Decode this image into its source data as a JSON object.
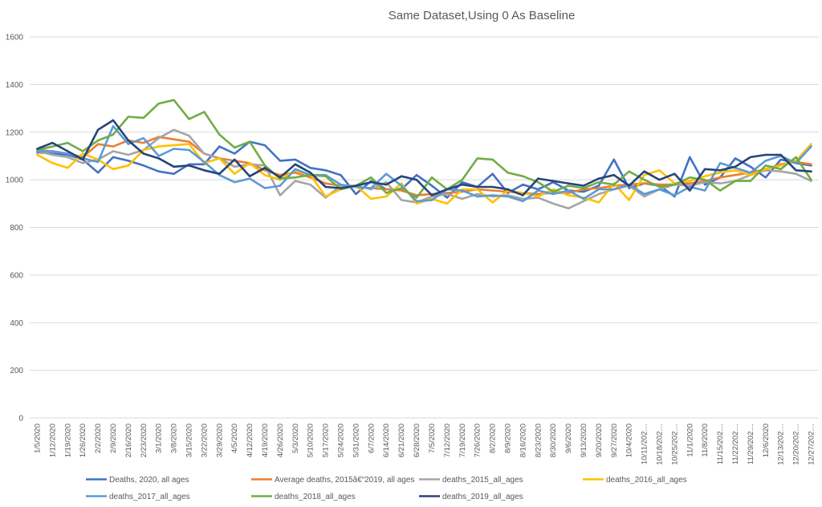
{
  "chart_data": {
    "type": "line",
    "title": "Same Dataset,Using 0 As Baseline",
    "xlabel": "",
    "ylabel": "",
    "ylim": [
      0,
      1600
    ],
    "yticks": [
      0,
      200,
      400,
      600,
      800,
      1000,
      1200,
      1400,
      1600
    ],
    "grid": true,
    "legend_position": "bottom",
    "categories": [
      "1/5/2020",
      "1/12/2020",
      "1/19/2020",
      "1/26/2020",
      "2/2/2020",
      "2/9/2020",
      "2/16/2020",
      "2/23/2020",
      "3/1/2020",
      "3/8/2020",
      "3/15/2020",
      "3/22/2020",
      "3/29/2020",
      "4/5/2020",
      "4/12/2020",
      "4/19/2020",
      "4/26/2020",
      "5/3/2020",
      "5/10/2020",
      "5/17/2020",
      "5/24/2020",
      "5/31/2020",
      "6/7/2020",
      "6/14/2020",
      "6/21/2020",
      "6/28/2020",
      "7/5/2020",
      "7/12/2020",
      "7/19/2020",
      "7/26/2020",
      "8/2/2020",
      "8/9/2020",
      "8/16/2020",
      "8/23/2020",
      "8/30/2020",
      "9/6/2020",
      "9/13/2020",
      "9/20/2020",
      "9/27/2020",
      "10/4/2020",
      "10/11/2020",
      "10/18/2020",
      "10/25/2020",
      "11/1/2020",
      "11/8/2020",
      "11/15/2020",
      "11/22/2020",
      "11/29/2020",
      "12/6/2020",
      "12/13/2020",
      "12/20/2020",
      "12/27/2020"
    ],
    "tick_labels": [
      "1/5/2020",
      "1/12/2020",
      "1/19/2020",
      "1/26/2020",
      "2/2/2020",
      "2/9/2020",
      "2/16/2020",
      "2/23/2020",
      "3/1/2020",
      "3/8/2020",
      "3/15/2020",
      "3/22/2020",
      "3/29/2020",
      "4/5/2020",
      "4/12/2020",
      "4/19/2020",
      "4/26/2020",
      "5/3/2020",
      "5/10/2020",
      "5/17/2020",
      "5/24/2020",
      "5/31/2020",
      "6/7/2020",
      "6/14/2020",
      "6/21/2020",
      "6/28/2020",
      "7/5/2020",
      "7/12/2020",
      "7/19/2020",
      "7/26/2020",
      "8/2/2020",
      "8/9/2020",
      "8/16/2020",
      "8/23/2020",
      "8/30/2020",
      "9/6/2020",
      "9/13/2020",
      "9/20/2020",
      "9/27/2020",
      "10/4/2020",
      "10/11/2020",
      "10/18/2020",
      "10/25/2020",
      "11/1/2020",
      "11/8/2020",
      "11/15/2020",
      "11/22/2020",
      "11/29/2020",
      "12/6/2020",
      "12/13/2020",
      "12/20/2020",
      "12/27/2020"
    ],
    "series": [
      {
        "name": "Deaths, 2020, all ages",
        "color": "#4472c4",
        "values": [
          1115,
          1110,
          1105,
          1085,
          1030,
          1095,
          1080,
          1060,
          1035,
          1025,
          1065,
          1065,
          1140,
          1110,
          1160,
          1145,
          1080,
          1085,
          1050,
          1040,
          1020,
          940,
          995,
          960,
          960,
          1020,
          975,
          925,
          990,
          970,
          1025,
          945,
          980,
          960,
          990,
          955,
          950,
          975,
          1085,
          965,
          985,
          975,
          930,
          1095,
          980,
          1010,
          1090,
          1055,
          1010,
          1085,
          1070,
          1060
        ]
      },
      {
        "name": "Average deaths, 2015â€“2019, all ages",
        "color": "#ed7d31",
        "values": [
          1125,
          1120,
          1110,
          1095,
          1150,
          1140,
          1165,
          1155,
          1180,
          1170,
          1160,
          1110,
          1090,
          1080,
          1070,
          1040,
          1020,
          1030,
          1010,
          985,
          975,
          970,
          965,
          960,
          955,
          935,
          940,
          945,
          950,
          960,
          955,
          950,
          945,
          940,
          945,
          945,
          960,
          965,
          975,
          980,
          985,
          980,
          980,
          985,
          995,
          1010,
          1020,
          1030,
          1045,
          1065,
          1075,
          1065
        ]
      },
      {
        "name": "deaths_2015_all_ages",
        "color": "#a5a5a5",
        "values": [
          1120,
          1105,
          1095,
          1070,
          1085,
          1120,
          1105,
          1125,
          1175,
          1210,
          1185,
          1110,
          1090,
          1055,
          1065,
          1060,
          935,
          995,
          980,
          925,
          975,
          975,
          960,
          990,
          915,
          905,
          930,
          940,
          920,
          940,
          930,
          935,
          920,
          925,
          900,
          880,
          910,
          940,
          960,
          975,
          930,
          960,
          980,
          975,
          990,
          985,
          995,
          1020,
          1040,
          1035,
          1025,
          995
        ]
      },
      {
        "name": "deaths_2016_all_ages",
        "color": "#ffc000",
        "values": [
          1105,
          1070,
          1050,
          1110,
          1085,
          1045,
          1060,
          1125,
          1140,
          1145,
          1150,
          1070,
          1090,
          1025,
          1070,
          1020,
          1000,
          1040,
          1020,
          930,
          960,
          975,
          920,
          930,
          985,
          900,
          920,
          900,
          960,
          960,
          905,
          955,
          945,
          930,
          960,
          935,
          925,
          905,
          985,
          915,
          1020,
          1040,
          985,
          995,
          1015,
          1030,
          1040,
          1020,
          1045,
          1060,
          1080,
          1150
        ]
      },
      {
        "name": "deaths_2017_all_ages",
        "color": "#5b9bd5",
        "values": [
          1120,
          1120,
          1110,
          1090,
          1075,
          1225,
          1150,
          1175,
          1100,
          1130,
          1125,
          1075,
          1020,
          990,
          1005,
          965,
          975,
          1045,
          1020,
          1020,
          980,
          970,
          965,
          1025,
          975,
          910,
          915,
          960,
          955,
          930,
          935,
          930,
          910,
          955,
          940,
          955,
          920,
          960,
          960,
          980,
          940,
          960,
          935,
          970,
          955,
          1070,
          1050,
          1030,
          1080,
          1100,
          1070,
          1140
        ]
      },
      {
        "name": "deaths_2018_all_ages",
        "color": "#70ad47",
        "values": [
          1125,
          1140,
          1155,
          1120,
          1165,
          1190,
          1265,
          1260,
          1320,
          1335,
          1255,
          1285,
          1190,
          1135,
          1160,
          1060,
          1005,
          1010,
          1020,
          1015,
          960,
          975,
          1010,
          945,
          965,
          925,
          1010,
          960,
          1000,
          1090,
          1085,
          1030,
          1015,
          990,
          950,
          975,
          965,
          990,
          980,
          1035,
          1000,
          970,
          980,
          1010,
          1000,
          955,
          995,
          995,
          1060,
          1045,
          1095,
          1000
        ]
      },
      {
        "name": "deaths_2019_all_ages",
        "color": "#264478",
        "values": [
          1130,
          1155,
          1120,
          1085,
          1210,
          1250,
          1165,
          1110,
          1090,
          1055,
          1060,
          1040,
          1025,
          1085,
          1015,
          1050,
          1010,
          1065,
          1030,
          970,
          965,
          975,
          990,
          980,
          1015,
          1000,
          935,
          960,
          980,
          970,
          970,
          960,
          935,
          1005,
          995,
          985,
          975,
          1005,
          1020,
          975,
          1035,
          1000,
          1025,
          955,
          1045,
          1040,
          1055,
          1095,
          1105,
          1105,
          1040,
          1035
        ]
      }
    ]
  }
}
